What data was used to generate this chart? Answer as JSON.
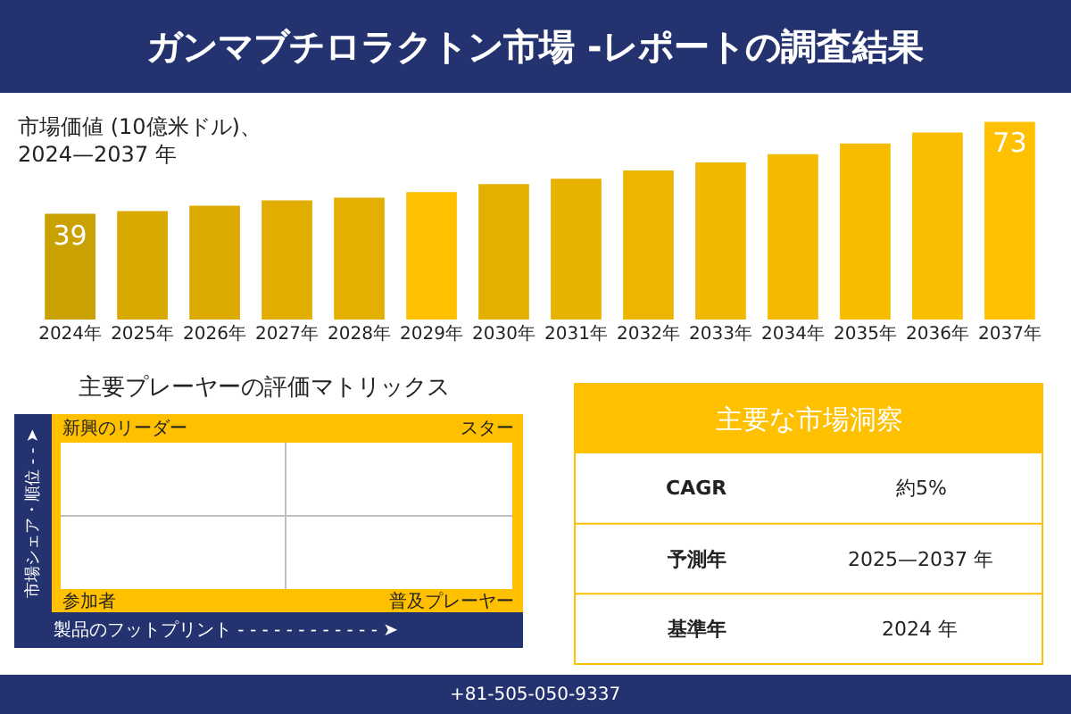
{
  "chart_data": [
    {
      "type": "bar",
      "title": "ガンマブチロラクトン市場 -レポートの調査結果",
      "ylabel": "市場価値 (10億米ドル)、\n2024—2037 年",
      "categories": [
        "2024年",
        "2025年",
        "2026年",
        "2027年",
        "2028年",
        "2029年",
        "2030年",
        "2031年",
        "2032年",
        "2033年",
        "2034年",
        "2035年",
        "2036年",
        "2037年"
      ],
      "values": [
        39,
        40,
        42,
        44,
        45,
        47,
        50,
        52,
        55,
        58,
        61,
        65,
        69,
        73
      ],
      "colors": [
        "#c9a100",
        "#d9a900",
        "#dcaa00",
        "#e0ad00",
        "#e4b000",
        "#ffc000",
        "#e4b000",
        "#e8b300",
        "#ecb600",
        "#f0b800",
        "#f3ba00",
        "#f6bc00",
        "#f9be00",
        "#ffc000"
      ],
      "value_labels": [
        "39",
        null,
        null,
        null,
        null,
        null,
        null,
        null,
        null,
        null,
        null,
        null,
        null,
        "73"
      ],
      "tick_labels": "x",
      "annotations": [
        "+81-505-050-9337"
      ]
    },
    {
      "type": "other",
      "title": "主要プレーヤーの評価マトリックス",
      "xlabel": "製品のフットプリント - - - - - - - - - - - - ➤",
      "ylabel": "市場シェア・順位 - - ➤",
      "annotations": [
        "新興のリーダー",
        "スター",
        "参加者",
        "普及プレーヤー"
      ]
    },
    {
      "type": "other",
      "title": "主要な市場洞察",
      "annotations": [
        "CAGR",
        "約5%",
        "予測年",
        "2025—2037 年",
        "基準年",
        "2024 年"
      ]
    }
  ]
}
